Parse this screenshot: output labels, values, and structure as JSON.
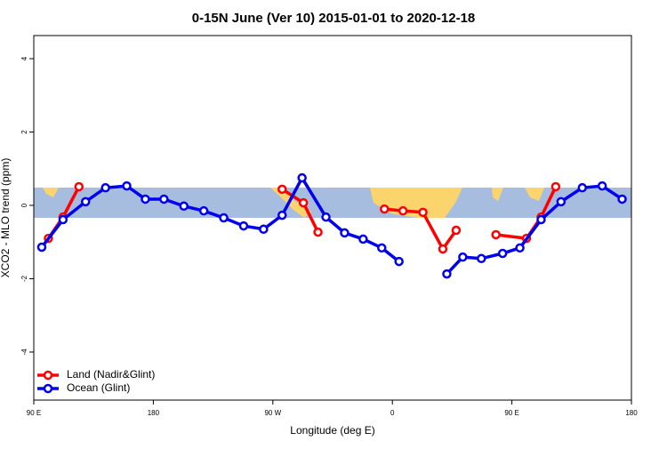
{
  "chart_data": {
    "type": "line",
    "title": "0-15N June (Ver 10)   2015-01-01 to 2020-12-18",
    "x_label": "Longitude (deg E)",
    "y_label": "XCO2 - MLO trend (ppm)",
    "xlim": [
      90,
      540
    ],
    "ylim": [
      -5.31,
      4.63
    ],
    "xticks": [
      {
        "value": 90,
        "label": "90 E"
      },
      180,
      {
        "value": 270,
        "label": "90 W"
      },
      {
        "value": 360,
        "label": "0"
      },
      {
        "value": 450,
        "label": "90 E"
      },
      {
        "value": 540,
        "label": "180"
      }
    ],
    "yticks": [
      -4,
      -2,
      0,
      2,
      4
    ],
    "legend": "bottom-left",
    "series": [
      {
        "name": "Land (Nadir&Glint)",
        "color": "#ff0000",
        "x": [
          101,
          112,
          124,
          null,
          277,
          293,
          304,
          null,
          354,
          368,
          383,
          398,
          408,
          null,
          438,
          461,
          472,
          483
        ],
        "values": [
          -0.9,
          -0.32,
          0.51,
          null,
          0.44,
          0.07,
          -0.73,
          null,
          -0.1,
          -0.15,
          -0.19,
          -1.19,
          -0.68,
          null,
          -0.8,
          -0.9,
          -0.32,
          0.51
        ]
      },
      {
        "name": "Ocean (Glint)",
        "color": "#0000ee",
        "x": [
          96,
          112,
          129,
          144,
          160,
          174,
          188,
          203,
          218,
          233,
          248,
          263,
          277,
          292,
          310,
          324,
          338,
          352,
          365,
          null,
          401,
          413,
          427,
          443,
          456,
          472,
          487,
          503,
          518,
          533
        ],
        "values": [
          -1.14,
          -0.39,
          0.1,
          0.48,
          0.53,
          0.17,
          0.17,
          -0.02,
          -0.15,
          -0.34,
          -0.56,
          -0.65,
          -0.27,
          0.75,
          -0.32,
          -0.75,
          -0.92,
          -1.16,
          -1.53,
          null,
          -1.87,
          -1.41,
          -1.45,
          -1.31,
          -1.16,
          -0.39,
          0.1,
          0.48,
          0.53,
          0.17
        ]
      }
    ]
  }
}
